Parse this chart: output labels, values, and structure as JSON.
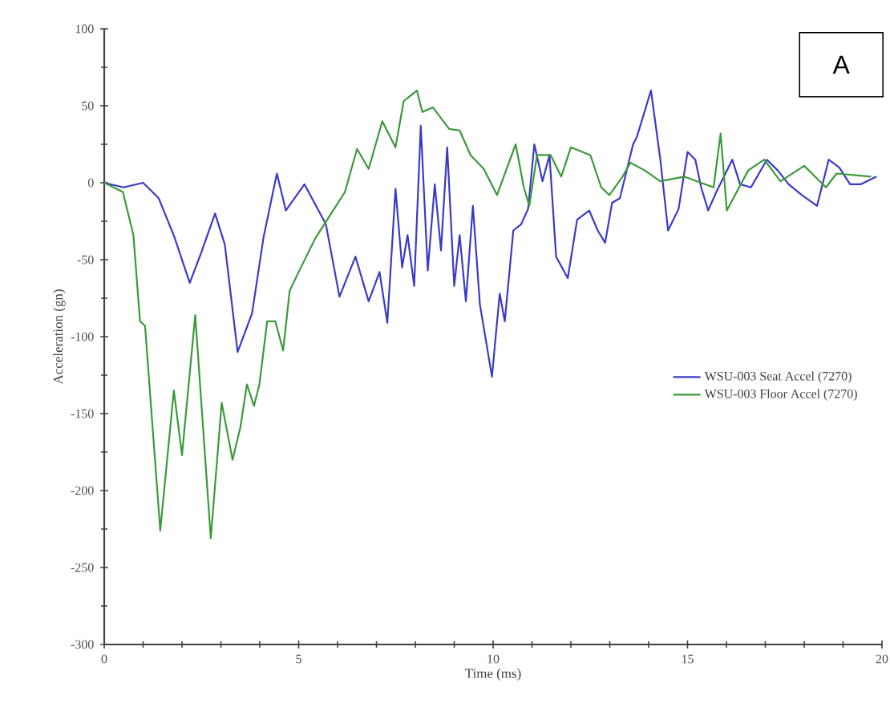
{
  "chart_data": {
    "type": "line",
    "xlabel": "Time (ms)",
    "ylabel": "Acceleration (gn)",
    "annotations": [
      "A"
    ],
    "xlim": [
      0,
      20
    ],
    "ylim": [
      -300,
      100
    ],
    "xticks": [
      0,
      5,
      10,
      15,
      20
    ],
    "yticks": [
      -300,
      -250,
      -200,
      -150,
      -100,
      -50,
      0,
      50,
      100
    ],
    "legend": "right",
    "grid": false,
    "marker": "none",
    "line_style": "solid",
    "series": [
      {
        "name": "WSU-003 Seat Accel (7270)",
        "color": "#3a3ac8",
        "x": [
          0,
          0.5,
          1,
          1.4,
          1.8,
          2.2,
          2.5,
          2.85,
          3.1,
          3.43,
          3.8,
          4.1,
          4.44,
          4.67,
          5.15,
          5.7,
          6.05,
          6.46,
          6.8,
          7.08,
          7.28,
          7.49,
          7.66,
          7.8,
          7.97,
          8.14,
          8.32,
          8.5,
          8.66,
          8.82,
          9.0,
          9.14,
          9.3,
          9.48,
          9.66,
          9.97,
          10.17,
          10.3,
          10.52,
          10.72,
          10.9,
          11.06,
          11.27,
          11.45,
          11.62,
          11.92,
          12.16,
          12.47,
          12.69,
          12.88,
          13.06,
          13.26,
          13.6,
          13.7,
          14.06,
          14.3,
          14.5,
          14.77,
          15.0,
          15.2,
          15.35,
          15.53,
          15.74,
          16.15,
          16.35,
          16.63,
          17.04,
          17.32,
          17.6,
          17.94,
          18.33,
          18.63,
          18.9,
          19.18,
          19.45,
          19.86
        ],
        "values": [
          0,
          -3,
          0,
          -10,
          -35,
          -65,
          -45,
          -20,
          -40,
          -110,
          -85,
          -35,
          6,
          -18,
          -1,
          -27,
          -74,
          -48,
          -77,
          -58,
          -91,
          -4,
          -55,
          -34,
          -67,
          37,
          -57,
          -1,
          -44,
          23,
          -67,
          -34,
          -77,
          -15,
          -79,
          -126,
          -72,
          -90,
          -31,
          -27,
          -17,
          25,
          1,
          18,
          -48,
          -62,
          -24,
          -18,
          -31,
          -39,
          -13,
          -10,
          25,
          30,
          60,
          15,
          -31,
          -17,
          20,
          15,
          -3,
          -18,
          -6,
          15,
          -1,
          -3,
          15,
          8,
          -1,
          -8,
          -15,
          15,
          10,
          -1,
          -1,
          4
        ]
      },
      {
        "name": "WSU-003 Floor Accel (7270)",
        "color": "#3a9a3a",
        "x": [
          0,
          0.48,
          0.75,
          0.92,
          1.05,
          1.44,
          1.79,
          2.0,
          2.34,
          2.74,
          3.02,
          3.3,
          3.5,
          3.67,
          3.85,
          3.99,
          4.19,
          4.4,
          4.6,
          4.77,
          5.0,
          5.43,
          6.19,
          6.5,
          6.8,
          7.15,
          7.49,
          7.7,
          8.04,
          8.18,
          8.45,
          8.87,
          9.14,
          9.42,
          9.76,
          10.1,
          10.58,
          10.79,
          10.93,
          11.13,
          11.48,
          11.75,
          12.0,
          12.5,
          12.78,
          12.99,
          13.33,
          13.53,
          13.9,
          14.3,
          14.91,
          15.67,
          15.85,
          16.01,
          16.56,
          16.97,
          17.39,
          18.0,
          18.56,
          18.83,
          19.72
        ],
        "values": [
          0,
          -6,
          -34,
          -90,
          -93,
          -226,
          -135,
          -177,
          -86,
          -231,
          -143,
          -180,
          -159,
          -131,
          -145,
          -131,
          -90,
          -90,
          -109,
          -70,
          -58,
          -36,
          -6,
          22,
          9,
          40,
          23,
          53,
          60,
          46,
          49,
          35,
          34,
          18,
          9,
          -8,
          25,
          -3,
          -15,
          18,
          18,
          4,
          23,
          18,
          -3,
          -8,
          4,
          13,
          8,
          1,
          4,
          -3,
          32,
          -18,
          8,
          15,
          1,
          11,
          -3,
          6,
          4
        ]
      }
    ]
  }
}
